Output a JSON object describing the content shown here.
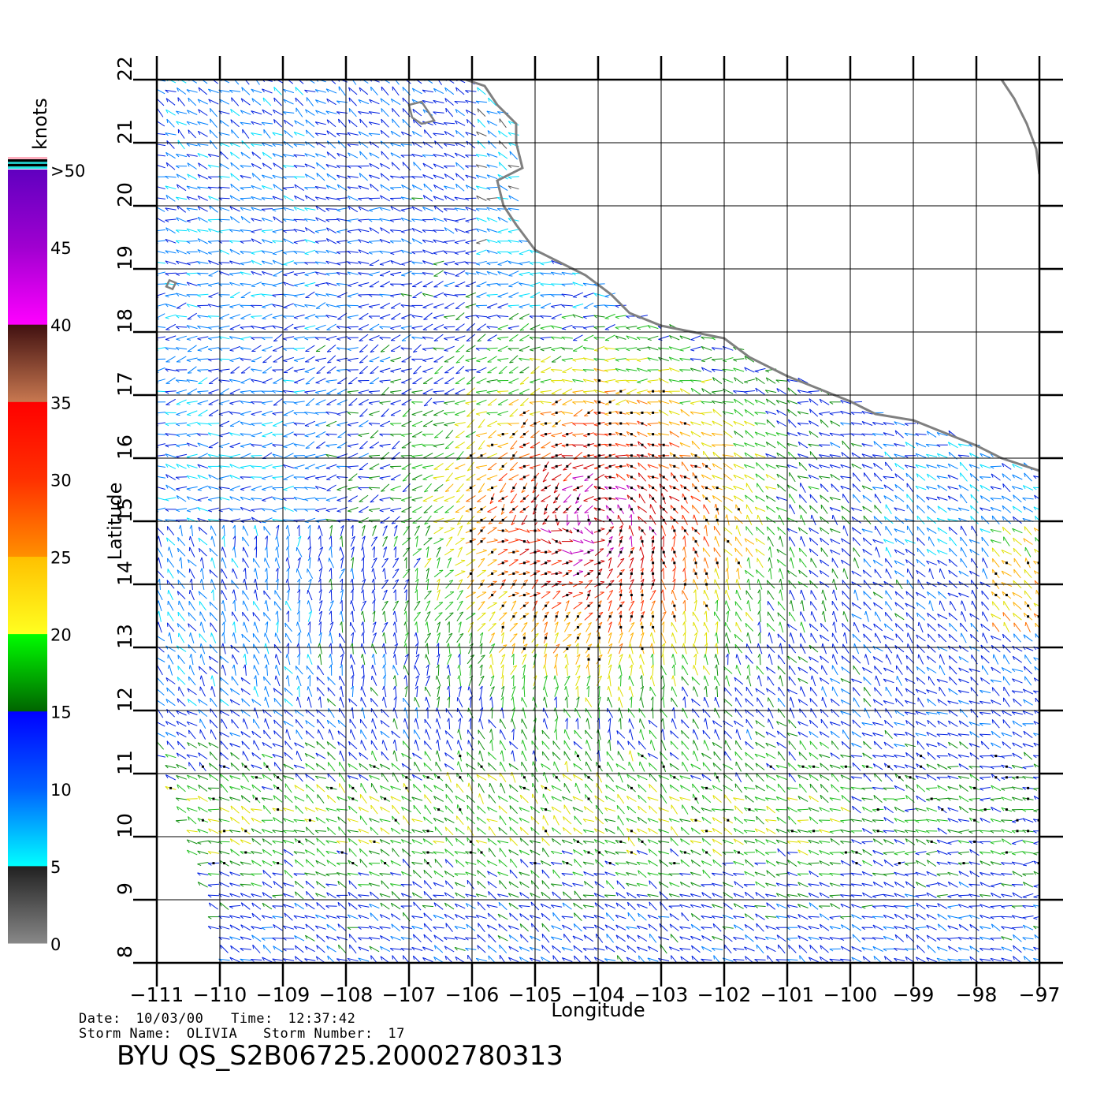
{
  "map": {
    "lon_range": [
      -111,
      -97
    ],
    "lat_range": [
      8,
      22
    ],
    "lon_ticks": [
      -111,
      -110,
      -109,
      -108,
      -107,
      -106,
      -105,
      -104,
      -103,
      -102,
      -101,
      -100,
      -99,
      -98,
      -97
    ],
    "lat_ticks": [
      8,
      9,
      10,
      11,
      12,
      13,
      14,
      15,
      16,
      17,
      18,
      19,
      20,
      21,
      22
    ],
    "grid": true,
    "xlabel": "Longitude",
    "ylabel": "Latitude",
    "coast_color": "#808080",
    "coastline": [
      [
        -106.1,
        22.0
      ],
      [
        -105.8,
        21.9
      ],
      [
        -105.6,
        21.6
      ],
      [
        -105.3,
        21.3
      ],
      [
        -105.3,
        21.0
      ],
      [
        -105.2,
        20.6
      ],
      [
        -105.6,
        20.4
      ],
      [
        -105.5,
        20.0
      ],
      [
        -105.3,
        19.7
      ],
      [
        -105.0,
        19.3
      ],
      [
        -104.6,
        19.1
      ],
      [
        -104.2,
        18.9
      ],
      [
        -103.8,
        18.6
      ],
      [
        -103.5,
        18.3
      ],
      [
        -103.0,
        18.1
      ],
      [
        -102.5,
        18.0
      ],
      [
        -102.0,
        17.9
      ],
      [
        -101.6,
        17.6
      ],
      [
        -101.0,
        17.3
      ],
      [
        -100.5,
        17.1
      ],
      [
        -100.0,
        16.9
      ],
      [
        -99.6,
        16.7
      ],
      [
        -99.0,
        16.6
      ],
      [
        -98.5,
        16.4
      ],
      [
        -98.0,
        16.2
      ],
      [
        -97.6,
        16.0
      ],
      [
        -97.0,
        15.8
      ]
    ],
    "coastline_ne": [
      [
        -97.6,
        22.0
      ],
      [
        -97.4,
        21.7
      ],
      [
        -97.2,
        21.3
      ],
      [
        -97.05,
        20.9
      ],
      [
        -97.0,
        20.5
      ]
    ],
    "islands": [
      [
        [
          -107.0,
          21.6
        ],
        [
          -106.8,
          21.65
        ],
        [
          -106.7,
          21.5
        ],
        [
          -106.6,
          21.35
        ],
        [
          -106.8,
          21.3
        ],
        [
          -106.95,
          21.4
        ]
      ],
      [
        [
          -110.8,
          18.82
        ],
        [
          -110.7,
          18.78
        ],
        [
          -110.75,
          18.68
        ],
        [
          -110.85,
          18.72
        ]
      ]
    ]
  },
  "colorbar": {
    "unit": "knots",
    "tick_labels": [
      "0",
      "5",
      "10",
      "15",
      "20",
      "25",
      "30",
      "35",
      "40",
      "45",
      ">50"
    ],
    "tick_values": [
      0,
      5,
      10,
      15,
      20,
      25,
      30,
      35,
      40,
      45,
      50
    ],
    "segments": [
      {
        "from": 0,
        "to": 5,
        "colors": [
          "#888888",
          "#202020"
        ]
      },
      {
        "from": 5,
        "to": 10,
        "colors": [
          "#00ffff",
          "#0060ff"
        ]
      },
      {
        "from": 10,
        "to": 15,
        "colors": [
          "#0060ff",
          "#0000ff"
        ]
      },
      {
        "from": 15,
        "to": 20,
        "colors": [
          "#006400",
          "#00ff00"
        ]
      },
      {
        "from": 20,
        "to": 25,
        "colors": [
          "#ffff20",
          "#ffc000"
        ]
      },
      {
        "from": 25,
        "to": 30,
        "colors": [
          "#ff9000",
          "#ff3000"
        ]
      },
      {
        "from": 30,
        "to": 35,
        "colors": [
          "#ff3000",
          "#ff0000"
        ]
      },
      {
        "from": 35,
        "to": 40,
        "colors": [
          "#c87850",
          "#401010"
        ]
      },
      {
        "from": 40,
        "to": 45,
        "colors": [
          "#ff00ff",
          "#a000d0"
        ]
      },
      {
        "from": 45,
        "to": 50,
        "colors": [
          "#a000d0",
          "#6000c0"
        ]
      }
    ],
    "top_stripes": [
      "#ffb0c0",
      "#000000",
      "#20c0c0",
      "#000000",
      "#20e0e0"
    ]
  },
  "meta": {
    "date_label": "Date:",
    "date": "10/03/00",
    "time_label": "Time:",
    "time": "12:37:42",
    "storm_name_label": "Storm  Name:",
    "storm_name": "OLIVIA",
    "storm_number_label": "Storm  Number:",
    "storm_number": "17",
    "file_id": "BYU  QS_S2B06725.20002780313"
  },
  "wind_field": {
    "storm_center": [
      -104.0,
      15.0
    ],
    "rain_flag_color": "#000000"
  }
}
